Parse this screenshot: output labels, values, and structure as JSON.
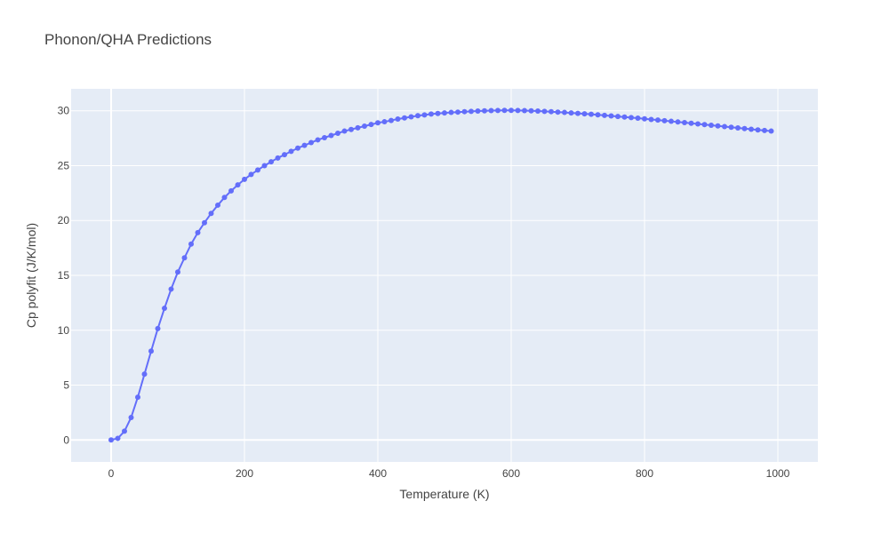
{
  "chart_data": {
    "type": "line",
    "title": "Phonon/QHA Predictions",
    "xlabel": "Temperature (K)",
    "ylabel": "Cp polyfit (J/K/mol)",
    "xlim": [
      -60,
      1060
    ],
    "ylim": [
      -2,
      32
    ],
    "x_ticks": [
      0,
      200,
      400,
      600,
      800,
      1000
    ],
    "y_ticks": [
      0,
      5,
      10,
      15,
      20,
      25,
      30
    ],
    "grid": true,
    "legend": "none",
    "plot_background": "#e5ecf6",
    "series": [
      {
        "color": "#636efa",
        "mode": "lines+markers",
        "x": [
          0,
          10,
          20,
          30,
          40,
          50,
          60,
          70,
          80,
          90,
          100,
          110,
          120,
          130,
          140,
          150,
          160,
          170,
          180,
          190,
          200,
          210,
          220,
          230,
          240,
          250,
          260,
          270,
          280,
          290,
          300,
          310,
          320,
          330,
          340,
          350,
          360,
          370,
          380,
          390,
          400,
          410,
          420,
          430,
          440,
          450,
          460,
          470,
          480,
          490,
          500,
          510,
          520,
          530,
          540,
          550,
          560,
          570,
          580,
          590,
          600,
          610,
          620,
          630,
          640,
          650,
          660,
          670,
          680,
          690,
          700,
          710,
          720,
          730,
          740,
          750,
          760,
          770,
          780,
          790,
          800,
          810,
          820,
          830,
          840,
          850,
          860,
          870,
          880,
          890,
          900,
          910,
          920,
          930,
          940,
          950,
          960,
          970,
          980,
          990
        ],
        "y": [
          0,
          0.15,
          0.8,
          2.05,
          3.9,
          6.0,
          8.1,
          10.15,
          12.0,
          13.75,
          15.3,
          16.6,
          17.85,
          18.9,
          19.8,
          20.65,
          21.4,
          22.1,
          22.7,
          23.25,
          23.75,
          24.2,
          24.6,
          25.0,
          25.35,
          25.7,
          26.0,
          26.3,
          26.6,
          26.85,
          27.1,
          27.35,
          27.55,
          27.75,
          27.95,
          28.15,
          28.3,
          28.45,
          28.6,
          28.75,
          28.9,
          29.0,
          29.12,
          29.25,
          29.35,
          29.45,
          29.55,
          29.62,
          29.7,
          29.75,
          29.8,
          29.85,
          29.88,
          29.92,
          29.95,
          29.98,
          30.0,
          30.02,
          30.03,
          30.04,
          30.04,
          30.03,
          30.02,
          30.0,
          29.98,
          29.95,
          29.92,
          29.88,
          29.85,
          29.8,
          29.76,
          29.72,
          29.68,
          29.63,
          29.58,
          29.53,
          29.48,
          29.43,
          29.38,
          29.33,
          29.27,
          29.21,
          29.16,
          29.1,
          29.04,
          28.98,
          28.92,
          28.86,
          28.8,
          28.74,
          28.68,
          28.62,
          28.56,
          28.5,
          28.44,
          28.38,
          28.32,
          28.26,
          28.21,
          28.15
        ]
      }
    ]
  }
}
